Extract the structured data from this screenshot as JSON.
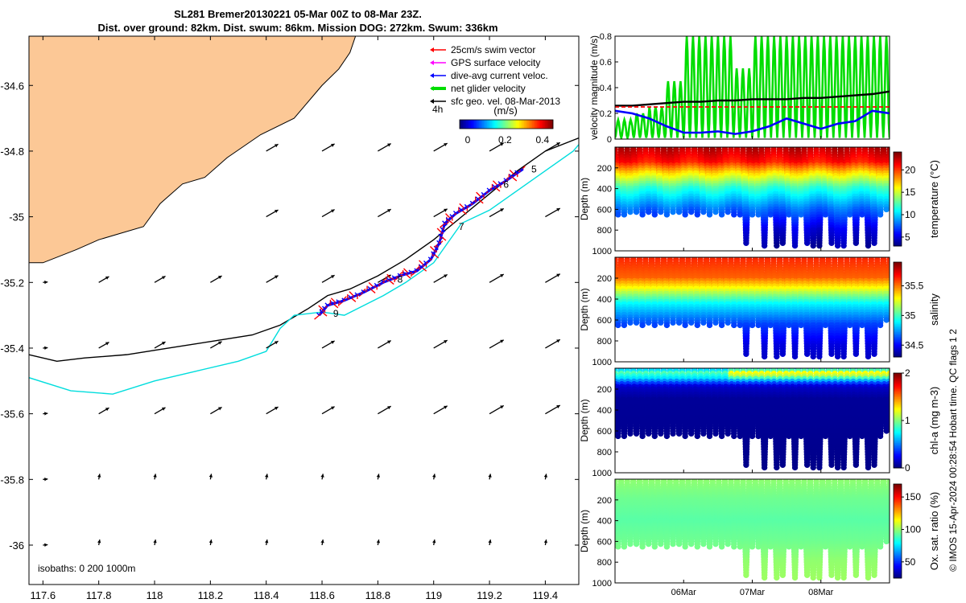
{
  "header": {
    "title_line1": "SL281 Bremer20130221 05-Mar 00Z to 08-Mar 23Z.",
    "title_line2": "Dist. over ground: 82km. Dist. swum: 86km. Mission DOG: 272km. Swum: 336km"
  },
  "credit": "© IMOS 15-Apr-2024 00:28:54 Hobart time. QC flags 1  2",
  "colors": {
    "land": "#fcc896",
    "swim_vector": "#ff0000",
    "gps_velocity": "#ff00ff",
    "dive_avg_current": "#0000ff",
    "net_glider": "#00dd00",
    "sfc_geo": "#000000",
    "isobath_200": "#00dddd",
    "isobath_1000": "#000000"
  },
  "chart_data": [
    {
      "id": "map",
      "type": "scatter",
      "title": "",
      "xlabel": "",
      "ylabel": "",
      "xlim": [
        117.55,
        119.52
      ],
      "ylim": [
        -36.12,
        -34.45
      ],
      "xticks": [
        117.6,
        117.8,
        118,
        118.2,
        118.4,
        118.6,
        118.8,
        119,
        119.2,
        119.4
      ],
      "xtick_labels": [
        "117.6",
        "117.8",
        "118",
        "118.2",
        "118.4",
        "118.6",
        "118.8",
        "119",
        "119.2",
        "119.4"
      ],
      "yticks": [
        -34.6,
        -34.8,
        -35,
        -35.2,
        -35.4,
        -35.6,
        -35.8,
        -36
      ],
      "ytick_labels": [
        "-34.6",
        "-34.8",
        "-35",
        "-35.2",
        "-35.4",
        "-35.6",
        "-35.8",
        "-36"
      ],
      "legend": {
        "position": "top-right",
        "entries": [
          "25cm/s swim vector",
          "GPS surface velocity",
          "dive-avg current veloc.",
          "net glider velocity",
          "sfc geo. vel. 08-Mar-2013"
        ],
        "interval_label": "4h",
        "units": "(m/s)",
        "colorbar_ticks": [
          "0",
          "0.2",
          "0.4"
        ],
        "colorbar_range": [
          0,
          0.5
        ]
      },
      "isobaths_label": "isobaths: 0   200  1000m",
      "track": [
        [
          118.59,
          -35.3
        ],
        [
          118.62,
          -35.27
        ],
        [
          118.68,
          -35.255
        ],
        [
          118.75,
          -35.23
        ],
        [
          118.82,
          -35.2
        ],
        [
          118.88,
          -35.18
        ],
        [
          118.94,
          -35.165
        ],
        [
          118.99,
          -35.13
        ],
        [
          119.02,
          -35.08
        ],
        [
          119.04,
          -35.02
        ],
        [
          119.08,
          -34.99
        ],
        [
          119.14,
          -34.96
        ],
        [
          119.2,
          -34.92
        ],
        [
          119.26,
          -34.89
        ],
        [
          119.32,
          -34.855
        ]
      ],
      "day_markers": [
        {
          "label": "5",
          "lon": 119.35,
          "lat": -34.865
        },
        {
          "label": "6",
          "lon": 119.25,
          "lat": -34.912
        },
        {
          "label": "7",
          "lon": 119.09,
          "lat": -35.04
        },
        {
          "label": "8",
          "lon": 118.87,
          "lat": -35.2
        },
        {
          "label": "9",
          "lon": 118.64,
          "lat": -35.305
        }
      ],
      "isobath_1000": [
        [
          117.55,
          -35.42
        ],
        [
          117.65,
          -35.44
        ],
        [
          117.75,
          -35.43
        ],
        [
          117.9,
          -35.42
        ],
        [
          118.05,
          -35.4
        ],
        [
          118.2,
          -35.38
        ],
        [
          118.35,
          -35.36
        ],
        [
          118.45,
          -35.33
        ],
        [
          118.55,
          -35.28
        ],
        [
          118.62,
          -35.24
        ],
        [
          118.7,
          -35.22
        ],
        [
          118.8,
          -35.18
        ],
        [
          118.9,
          -35.13
        ],
        [
          119.0,
          -35.07
        ],
        [
          119.1,
          -35.0
        ],
        [
          119.2,
          -34.93
        ],
        [
          119.3,
          -34.86
        ],
        [
          119.4,
          -34.8
        ],
        [
          119.52,
          -34.76
        ]
      ],
      "isobath_200": [
        [
          117.55,
          -35.49
        ],
        [
          117.7,
          -35.53
        ],
        [
          117.85,
          -35.54
        ],
        [
          118.0,
          -35.5
        ],
        [
          118.15,
          -35.47
        ],
        [
          118.3,
          -35.44
        ],
        [
          118.4,
          -35.41
        ],
        [
          118.45,
          -35.34
        ],
        [
          118.5,
          -35.3
        ],
        [
          118.6,
          -35.29
        ],
        [
          118.68,
          -35.3
        ],
        [
          118.75,
          -35.27
        ],
        [
          118.82,
          -35.24
        ],
        [
          118.9,
          -35.2
        ],
        [
          119.0,
          -35.14
        ],
        [
          119.05,
          -35.08
        ],
        [
          119.1,
          -35.02
        ],
        [
          119.2,
          -34.98
        ],
        [
          119.3,
          -34.92
        ],
        [
          119.4,
          -34.86
        ],
        [
          119.5,
          -34.8
        ],
        [
          119.52,
          -34.78
        ]
      ]
    },
    {
      "id": "velocity",
      "type": "line",
      "ylabel": "velocity magnitude (m/s)",
      "ylim": [
        0,
        0.8
      ],
      "yticks": [
        0,
        0.2,
        0.4,
        0.6,
        0.8
      ],
      "ytick_labels": [
        "0",
        "0.2",
        "0.4",
        "0.6",
        "0.8"
      ],
      "x": [
        0,
        0.25,
        0.5,
        0.75,
        1.0,
        1.25,
        1.5,
        1.75,
        2.0,
        2.25,
        2.5,
        2.75,
        3.0,
        3.25,
        3.5,
        3.75,
        4.0
      ],
      "series": [
        {
          "name": "current",
          "values": [
            0.22,
            0.2,
            0.16,
            0.1,
            0.05,
            0.05,
            0.06,
            0.04,
            0.06,
            0.1,
            0.16,
            0.12,
            0.08,
            0.12,
            0.14,
            0.22,
            0.2
          ]
        },
        {
          "name": "sfc geo",
          "values": [
            0.26,
            0.26,
            0.27,
            0.28,
            0.29,
            0.29,
            0.3,
            0.3,
            0.31,
            0.31,
            0.31,
            0.32,
            0.32,
            0.33,
            0.34,
            0.35,
            0.37
          ]
        },
        {
          "name": "swim",
          "values": [
            0.25,
            0.25,
            0.25,
            0.25,
            0.25,
            0.25,
            0.25,
            0.25,
            0.25,
            0.25,
            0.25,
            0.25,
            0.25,
            0.25,
            0.25,
            0.25,
            0.25
          ]
        },
        {
          "name": "net glider peaks",
          "values": [
            0.15,
            0.2,
            0.25,
            0.45,
            0.8,
            0.8,
            0.8,
            0.55,
            0.8,
            0.8,
            0.8,
            0.8,
            0.8,
            0.8,
            0.8,
            0.8,
            0.8
          ]
        }
      ]
    },
    {
      "id": "temperature",
      "type": "heatmap",
      "ylabel": "Depth (m)",
      "clabel": "temperature (°C)",
      "ylim": [
        1000,
        0
      ],
      "yticks": [
        200,
        400,
        600,
        800,
        1000
      ],
      "clim": [
        3,
        24
      ],
      "cticks": [
        "5",
        "10",
        "15",
        "20"
      ],
      "cvals": [
        5,
        10,
        15,
        20
      ],
      "profile": [
        [
          0,
          23
        ],
        [
          150,
          21
        ],
        [
          250,
          17
        ],
        [
          400,
          12
        ],
        [
          600,
          8
        ],
        [
          800,
          5
        ],
        [
          1000,
          3.5
        ]
      ]
    },
    {
      "id": "salinity",
      "type": "heatmap",
      "ylabel": "Depth (m)",
      "clabel": "salinity",
      "ylim": [
        1000,
        0
      ],
      "yticks": [
        200,
        400,
        600,
        800,
        1000
      ],
      "clim": [
        34.3,
        35.9
      ],
      "cticks": [
        "34.5",
        "35",
        "35.5"
      ],
      "cvals": [
        34.5,
        35.0,
        35.5
      ],
      "profile": [
        [
          0,
          35.65
        ],
        [
          200,
          35.55
        ],
        [
          300,
          35.3
        ],
        [
          450,
          34.9
        ],
        [
          650,
          34.6
        ],
        [
          850,
          34.45
        ],
        [
          1000,
          34.4
        ]
      ]
    },
    {
      "id": "chla",
      "type": "heatmap",
      "ylabel": "Depth (m)",
      "clabel": "chl-a (mg m-3)",
      "ylim": [
        1000,
        0
      ],
      "yticks": [
        200,
        400,
        600,
        800,
        1000
      ],
      "clim": [
        0,
        2
      ],
      "cticks": [
        "0",
        "1",
        "2"
      ],
      "cvals": [
        0,
        1,
        2
      ],
      "profile": [
        [
          0,
          0.5
        ],
        [
          50,
          0.9
        ],
        [
          100,
          0.7
        ],
        [
          180,
          0.15
        ],
        [
          300,
          0.05
        ],
        [
          1000,
          0.02
        ]
      ]
    },
    {
      "id": "oxygen",
      "type": "heatmap",
      "ylabel": "Depth (m)",
      "clabel": "Ox. sat. ratio (%)",
      "ylim": [
        1000,
        0
      ],
      "yticks": [
        200,
        400,
        600,
        800,
        1000
      ],
      "clim": [
        25,
        170
      ],
      "cticks": [
        "50",
        "100",
        "150"
      ],
      "cvals": [
        50,
        100,
        150
      ],
      "profile": [
        [
          0,
          100
        ],
        [
          200,
          95
        ],
        [
          400,
          92
        ],
        [
          600,
          95
        ],
        [
          800,
          100
        ],
        [
          1000,
          102
        ]
      ]
    }
  ],
  "time_axis": {
    "range_days": [
      0,
      4
    ],
    "ticks": [
      1,
      2,
      3
    ],
    "labels": [
      "06Mar",
      "07Mar",
      "08Mar"
    ],
    "dive_depths": [
      650,
      650,
      640,
      630,
      660,
      640,
      650,
      640,
      650,
      630,
      640,
      660,
      640,
      650,
      640,
      650,
      640,
      650,
      640,
      650,
      650,
      930,
      650,
      650,
      960,
      650,
      950,
      940,
      650,
      960,
      650,
      940,
      960,
      950,
      650,
      930,
      950,
      960,
      650,
      940,
      650,
      950,
      930,
      650,
      600
    ]
  }
}
